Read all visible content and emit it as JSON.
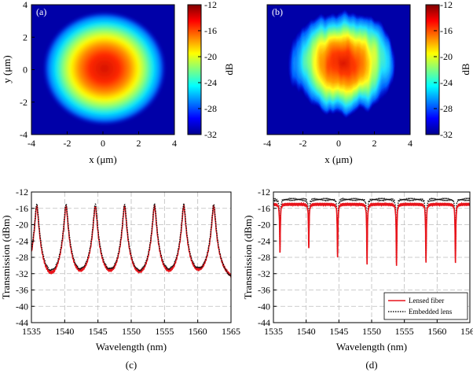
{
  "chart_data": [
    {
      "type": "heatmap",
      "panel_label": "(a)",
      "xlabel": "x (μm)",
      "ylabel": "y (μm)",
      "x_ticks": [
        "-4",
        "-2",
        "0",
        "2",
        "4"
      ],
      "y_ticks": [
        "4",
        "2",
        "0",
        "-2",
        "-4"
      ],
      "xlim": [
        -4,
        4
      ],
      "ylim": [
        -4,
        4
      ],
      "colorbar": {
        "label": "dB",
        "range": [
          -32,
          -12
        ],
        "ticks": [
          "-12",
          "-16",
          "-20",
          "-24",
          "-28",
          "-32"
        ]
      },
      "spot": {
        "center": [
          0.0,
          0.0
        ],
        "radius_x_um": 2.8,
        "radius_y_um": 2.4,
        "peak_db": -14,
        "background_db": -32,
        "shape": "smooth-gaussian"
      }
    },
    {
      "type": "heatmap",
      "panel_label": "(b)",
      "xlabel": "x (μm)",
      "ylabel": "y (μm)",
      "x_ticks": [
        "-4",
        "-2",
        "0",
        "2",
        "4"
      ],
      "y_ticks": [
        "4",
        "2",
        "0",
        "-2",
        "-4"
      ],
      "xlim": [
        -4,
        4
      ],
      "ylim": [
        -4,
        4
      ],
      "colorbar": {
        "label": "dB",
        "range": [
          -32,
          -12
        ],
        "ticks": [
          "-12",
          "-16",
          "-20",
          "-24",
          "-28",
          "-32"
        ]
      },
      "spot": {
        "center": [
          0.2,
          0.4
        ],
        "radius_x_um": 2.9,
        "radius_y_um": 2.7,
        "peak_db": -14,
        "background_db": -32,
        "shape": "irregular-vertical-streaks"
      }
    },
    {
      "type": "line",
      "caption": "(c)",
      "xlabel": "Wavelength (nm)",
      "ylabel": "Transmission (dBm)",
      "xlim": [
        1535,
        1565
      ],
      "ylim": [
        -44,
        -12
      ],
      "x_ticks": [
        "1535",
        "1540",
        "1545",
        "1550",
        "1555",
        "1560",
        "1565"
      ],
      "y_ticks": [
        "-12",
        "-16",
        "-20",
        "-24",
        "-28",
        "-32",
        "-36",
        "-40",
        "-44"
      ],
      "grid": true,
      "resonances_nm": [
        1535.8,
        1540.2,
        1544.6,
        1549.0,
        1553.5,
        1557.9,
        1562.4
      ],
      "series": [
        {
          "name": "Lensed fiber",
          "color": "#e8141b",
          "style": "solid",
          "peak_dbm": -15.5,
          "baseline_dbm": [
            -44,
            -40,
            -38,
            -40.5,
            -40,
            -38,
            -35
          ]
        },
        {
          "name": "Embedded lens",
          "color": "#111111",
          "style": "dotted",
          "peak_dbm": -15.0,
          "baseline_dbm": [
            -41,
            -40.5,
            -38,
            -42,
            -41,
            -37.5,
            -36
          ]
        }
      ]
    },
    {
      "type": "line",
      "caption": "(d)",
      "xlabel": "Wavelength (nm)",
      "ylabel": "Transmission (dBm)",
      "xlim": [
        1535,
        1565
      ],
      "ylim": [
        -44,
        -12
      ],
      "x_ticks": [
        "1535",
        "1540",
        "1545",
        "1550",
        "1555",
        "1560",
        "1565"
      ],
      "y_ticks": [
        "-12",
        "-16",
        "-20",
        "-24",
        "-28",
        "-32",
        "-36",
        "-40",
        "-44"
      ],
      "grid": true,
      "legend": {
        "position": "bottom-right",
        "entries": [
          "Lensed fiber",
          "Embedded lens"
        ]
      },
      "dips_nm": [
        1536.0,
        1540.4,
        1544.8,
        1549.3,
        1553.8,
        1558.3,
        1562.8
      ],
      "series": [
        {
          "name": "Lensed fiber",
          "color": "#e8141b",
          "style": "solid",
          "baseline_dbm": -15.0,
          "dip_min_dbm": [
            -27.0,
            -25.5,
            -28.0,
            -29.5,
            -30.0,
            -29.5,
            -29.5
          ]
        },
        {
          "name": "Embedded lens",
          "color": "#111111",
          "style": "dotted",
          "baseline_dbm": -13.8,
          "dip_min_dbm": [
            -26.5,
            -25.0,
            -27.5,
            -28.0,
            -29.5,
            -29.0,
            -28.5
          ]
        }
      ]
    }
  ]
}
